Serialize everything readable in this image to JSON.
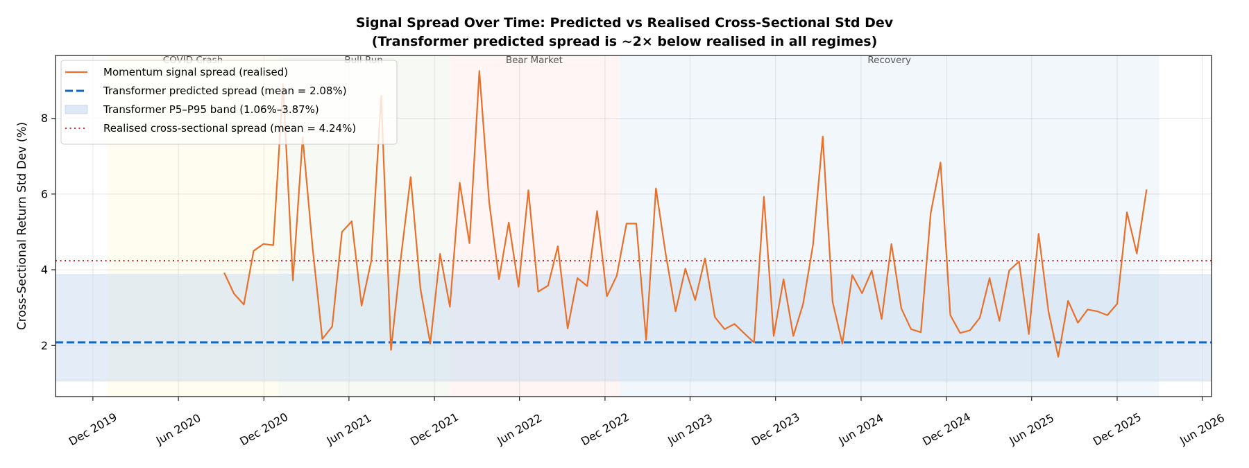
{
  "chart_data": {
    "type": "line",
    "title": "Signal Spread Over Time: Predicted vs Realised Cross-Sectional Std Dev",
    "subtitle": "(Transformer predicted spread is ~2× below realised in all regimes)",
    "xlabel": "",
    "ylabel": "Cross-Sectional Return Std Dev (%)",
    "xlim": [
      "2019-09-12",
      "2026-06-21"
    ],
    "ylim": [
      0.65,
      9.66
    ],
    "grid": true,
    "legend_position": "top-left",
    "x_ticks": [
      {
        "date": "2019-12-01",
        "label": "Dec 2019"
      },
      {
        "date": "2020-06-01",
        "label": "Jun 2020"
      },
      {
        "date": "2020-12-01",
        "label": "Dec 2020"
      },
      {
        "date": "2021-06-01",
        "label": "Jun 2021"
      },
      {
        "date": "2021-12-01",
        "label": "Dec 2021"
      },
      {
        "date": "2022-06-01",
        "label": "Jun 2022"
      },
      {
        "date": "2022-12-01",
        "label": "Dec 2022"
      },
      {
        "date": "2023-06-01",
        "label": "Jun 2023"
      },
      {
        "date": "2023-12-01",
        "label": "Dec 2023"
      },
      {
        "date": "2024-06-01",
        "label": "Jun 2024"
      },
      {
        "date": "2024-12-01",
        "label": "Dec 2024"
      },
      {
        "date": "2025-06-01",
        "label": "Jun 2025"
      },
      {
        "date": "2025-12-01",
        "label": "Dec 2025"
      },
      {
        "date": "2026-06-01",
        "label": "Jun 2026"
      }
    ],
    "y_ticks": [
      {
        "value": 2,
        "label": "2"
      },
      {
        "value": 4,
        "label": "4"
      },
      {
        "value": 6,
        "label": "6"
      },
      {
        "value": 8,
        "label": "8"
      }
    ],
    "regimes": [
      {
        "label": "COVID Crash",
        "start": "2020-01-01",
        "end": "2021-01-01",
        "color": "#fffbeb"
      },
      {
        "label": "Bull Run",
        "start": "2021-01-01",
        "end": "2022-01-01",
        "color": "#f4f8f0"
      },
      {
        "label": "Bear Market",
        "start": "2022-01-01",
        "end": "2023-01-01",
        "color": "#fff1f1"
      },
      {
        "label": "Recovery",
        "start": "2023-01-01",
        "end": "2026-03-01",
        "color": "#eef4fb"
      }
    ],
    "series": [
      {
        "name": "Momentum signal spread (realised)",
        "color": "#e8702a",
        "style": "solid",
        "x": [
          "2020-09-07",
          "2020-09-28",
          "2020-10-19",
          "2020-11-09",
          "2020-11-30",
          "2020-12-21",
          "2021-01-11",
          "2021-02-01",
          "2021-02-22",
          "2021-03-15",
          "2021-04-05",
          "2021-04-26",
          "2021-05-17",
          "2021-06-07",
          "2021-06-28",
          "2021-07-19",
          "2021-08-09",
          "2021-08-30",
          "2021-09-20",
          "2021-10-11",
          "2021-11-01",
          "2021-11-22",
          "2021-12-13",
          "2022-01-03",
          "2022-01-24",
          "2022-02-14",
          "2022-03-07",
          "2022-03-28",
          "2022-04-18",
          "2022-05-09",
          "2022-05-30",
          "2022-06-20",
          "2022-07-11",
          "2022-08-01",
          "2022-08-22",
          "2022-09-12",
          "2022-10-03",
          "2022-10-24",
          "2022-11-14",
          "2022-12-05",
          "2022-12-26",
          "2023-01-16",
          "2023-02-06",
          "2023-02-27",
          "2023-03-20",
          "2023-04-10",
          "2023-05-01",
          "2023-05-22",
          "2023-06-12",
          "2023-07-03",
          "2023-07-24",
          "2023-08-14",
          "2023-09-04",
          "2023-09-25",
          "2023-10-16",
          "2023-11-06",
          "2023-11-27",
          "2023-12-18",
          "2024-01-08",
          "2024-01-29",
          "2024-02-19",
          "2024-03-11",
          "2024-04-01",
          "2024-04-22",
          "2024-05-13",
          "2024-06-03",
          "2024-06-24",
          "2024-07-15",
          "2024-08-05",
          "2024-08-26",
          "2024-09-16",
          "2024-10-07",
          "2024-10-28",
          "2024-11-18",
          "2024-12-09",
          "2024-12-30",
          "2025-01-20",
          "2025-02-10",
          "2025-03-03",
          "2025-03-24",
          "2025-04-14",
          "2025-05-05",
          "2025-05-26",
          "2025-06-16",
          "2025-07-07",
          "2025-07-28",
          "2025-08-18",
          "2025-09-08",
          "2025-09-29",
          "2025-10-20",
          "2025-11-10",
          "2025-12-01",
          "2025-12-22",
          "2026-01-12",
          "2026-02-02"
        ],
        "values": [
          3.92,
          3.37,
          3.08,
          4.5,
          4.68,
          4.65,
          8.9,
          3.72,
          7.5,
          4.6,
          2.17,
          2.5,
          5.0,
          5.28,
          3.05,
          4.25,
          8.6,
          1.88,
          4.3,
          6.45,
          3.5,
          2.05,
          4.42,
          3.02,
          6.3,
          4.7,
          9.25,
          5.8,
          3.75,
          5.25,
          3.55,
          6.1,
          3.42,
          3.58,
          4.62,
          2.45,
          3.78,
          3.57,
          5.55,
          3.3,
          3.84,
          5.22,
          5.22,
          2.15,
          6.15,
          4.4,
          2.9,
          4.03,
          3.2,
          4.3,
          2.75,
          2.43,
          2.57,
          2.32,
          2.08,
          5.93,
          2.25,
          3.75,
          2.25,
          3.1,
          4.65,
          7.52,
          3.15,
          2.05,
          3.86,
          3.38,
          3.98,
          2.7,
          4.68,
          2.98,
          2.43,
          2.35,
          5.5,
          6.83,
          2.8,
          2.33,
          2.4,
          2.73,
          3.78,
          2.65,
          3.98,
          4.22,
          2.3,
          4.95,
          2.9,
          1.7,
          3.18,
          2.6,
          2.95,
          2.9,
          2.8,
          3.1,
          5.52,
          4.43,
          6.12
        ]
      },
      {
        "name": "Transformer predicted spread (mean = 2.08%)",
        "color": "#1565c0",
        "style": "dashed",
        "value": 2.08
      },
      {
        "name": "Transformer P5–P95 band (1.06%–3.87%)",
        "color": "#c9dbf0",
        "style": "band",
        "low": 1.06,
        "high": 3.87
      },
      {
        "name": "Realised cross-sectional spread (mean = 4.24%)",
        "color": "#d62728",
        "style": "dotted",
        "value": 4.24
      }
    ]
  }
}
